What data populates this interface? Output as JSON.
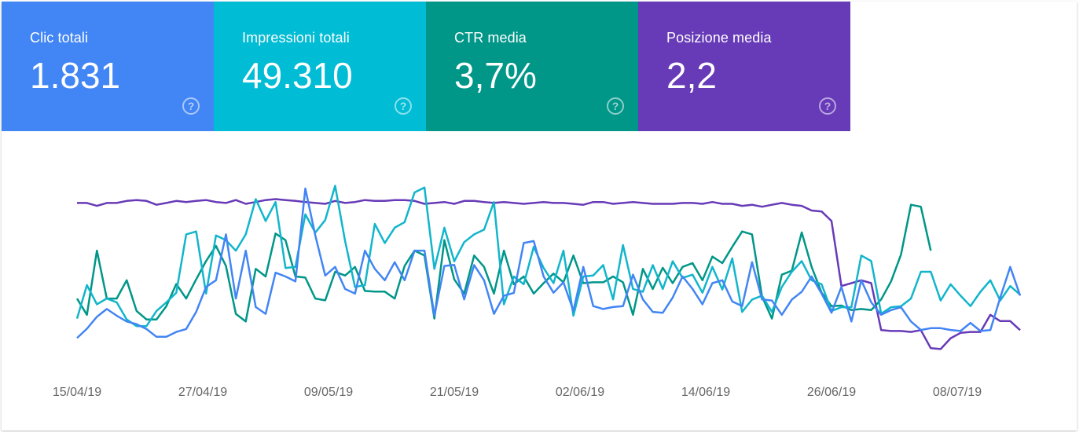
{
  "metrics": [
    {
      "label": "Clic totali",
      "value": "1.831",
      "color": "#4285f4"
    },
    {
      "label": "Impressioni totali",
      "value": "49.310",
      "color": "#00bcd4"
    },
    {
      "label": "CTR media",
      "value": "3,7%",
      "color": "#009688"
    },
    {
      "label": "Posizione media",
      "value": "2,2",
      "color": "#673ab7"
    }
  ],
  "help_icon": "question-circle-icon",
  "chart_data": {
    "type": "line",
    "x_start": "15/04/19",
    "x_labels": [
      "15/04/19",
      "27/04/19",
      "09/05/19",
      "21/05/19",
      "02/06/19",
      "14/06/19",
      "26/06/19",
      "08/07/19"
    ],
    "y_ranges": {
      "clicks": [
        0,
        1
      ],
      "impressions": [
        0,
        1
      ],
      "ctr": [
        0,
        1
      ],
      "position": [
        0,
        1
      ]
    },
    "grid": false,
    "legend": "none",
    "series": [
      {
        "key": "position",
        "color": "#673ab7",
        "values": [
          0.894,
          0.894,
          0.878,
          0.894,
          0.894,
          0.905,
          0.91,
          0.905,
          0.884,
          0.894,
          0.905,
          0.899,
          0.905,
          0.91,
          0.899,
          0.894,
          0.91,
          0.889,
          0.899,
          0.91,
          0.915,
          0.91,
          0.905,
          0.899,
          0.894,
          0.889,
          0.905,
          0.894,
          0.899,
          0.91,
          0.905,
          0.905,
          0.91,
          0.91,
          0.905,
          0.889,
          0.894,
          0.899,
          0.889,
          0.905,
          0.905,
          0.899,
          0.894,
          0.899,
          0.894,
          0.889,
          0.894,
          0.899,
          0.894,
          0.894,
          0.889,
          0.884,
          0.899,
          0.899,
          0.889,
          0.894,
          0.899,
          0.894,
          0.889,
          0.889,
          0.889,
          0.894,
          0.894,
          0.889,
          0.899,
          0.889,
          0.889,
          0.878,
          0.884,
          0.873,
          0.884,
          0.894,
          0.884,
          0.878,
          0.852,
          0.847,
          0.794,
          0.434,
          0.45,
          0.466,
          0.45,
          0.19,
          0.185,
          0.185,
          0.18,
          0.19,
          0.09,
          0.085,
          0.145,
          0.175,
          0.18,
          0.18,
          0.275,
          0.24,
          0.24,
          0.19
        ]
      },
      {
        "key": "ctr",
        "color": "#009688",
        "values": [
          0.365,
          0.275,
          0.63,
          0.365,
          0.365,
          0.466,
          0.296,
          0.249,
          0.249,
          0.323,
          0.445,
          0.365,
          0.471,
          0.572,
          0.656,
          0.545,
          0.28,
          0.238,
          0.529,
          0.487,
          0.725,
          0.688,
          0.487,
          0.481,
          0.365,
          0.355,
          0.513,
          0.492,
          0.54,
          0.407,
          0.403,
          0.403,
          0.365,
          0.545,
          0.63,
          0.603,
          0.254,
          0.688,
          0.471,
          0.392,
          0.603,
          0.54,
          0.392,
          0.63,
          0.444,
          0.487,
          0.392,
          0.45,
          0.503,
          0.455,
          0.603,
          0.45,
          0.455,
          0.455,
          0.487,
          0.455,
          0.275,
          0.529,
          0.418,
          0.535,
          0.45,
          0.54,
          0.561,
          0.466,
          0.597,
          0.561,
          0.651,
          0.736,
          0.72,
          0.376,
          0.254,
          0.497,
          0.519,
          0.731,
          0.54,
          0.397,
          0.323,
          0.326,
          0.301,
          0.307,
          0.301,
          0.36,
          0.46,
          0.608,
          0.884,
          0.873,
          0.63
        ]
      },
      {
        "key": "impressions",
        "color": "#12b5cb",
        "values": [
          0.254,
          0.439,
          0.333,
          0.365,
          0.344,
          0.249,
          0.212,
          0.212,
          0.296,
          0.344,
          0.397,
          0.72,
          0.736,
          0.392,
          0.714,
          0.688,
          0.63,
          0.72,
          0.915,
          0.794,
          0.899,
          0.534,
          0.54,
          0.831,
          0.73,
          0.799,
          0.989,
          0.683,
          0.429,
          0.439,
          0.778,
          0.672,
          0.757,
          0.788,
          0.952,
          0.979,
          0.529,
          0.757,
          0.571,
          0.677,
          0.72,
          0.746,
          0.899,
          0.333,
          0.487,
          0.444,
          0.651,
          0.534,
          0.45,
          0.63,
          0.27,
          0.487,
          0.492,
          0.55,
          0.36,
          0.661,
          0.418,
          0.402,
          0.55,
          0.418,
          0.571,
          0.479,
          0.497,
          0.397,
          0.54,
          0.415,
          0.587,
          0.291,
          0.359,
          0.381,
          0.291,
          0.429,
          0.513,
          0.572,
          0.466,
          0.444,
          0.296,
          0.317,
          0.317,
          0.603,
          0.572,
          0.281,
          0.317,
          0.322,
          0.365,
          0.513,
          0.513,
          0.354,
          0.444,
          0.381,
          0.323,
          0.402,
          0.466,
          0.354,
          0.434,
          0.386
        ]
      },
      {
        "key": "clicks",
        "color": "#4285f4",
        "values": [
          0.146,
          0.198,
          0.264,
          0.307,
          0.27,
          0.238,
          0.223,
          0.196,
          0.153,
          0.153,
          0.18,
          0.196,
          0.291,
          0.429,
          0.466,
          0.72,
          0.365,
          0.63,
          0.318,
          0.28,
          0.508,
          0.487,
          0.46,
          0.974,
          0.714,
          0.492,
          0.54,
          0.418,
          0.392,
          0.63,
          0.529,
          0.466,
          0.566,
          0.466,
          0.63,
          0.63,
          0.27,
          0.545,
          0.551,
          0.36,
          0.55,
          0.466,
          0.28,
          0.381,
          0.396,
          0.672,
          0.683,
          0.487,
          0.397,
          0.455,
          0.297,
          0.54,
          0.323,
          0.307,
          0.318,
          0.323,
          0.497,
          0.36,
          0.291,
          0.286,
          0.37,
          0.487,
          0.418,
          0.333,
          0.45,
          0.466,
          0.349,
          0.323,
          0.566,
          0.36,
          0.354,
          0.275,
          0.359,
          0.402,
          0.487,
          0.392,
          0.286,
          0.429,
          0.238,
          0.466,
          0.344,
          0.275,
          0.301,
          0.317,
          0.238,
          0.191,
          0.201,
          0.201,
          0.191,
          0.185,
          0.23,
          0.185,
          0.19,
          0.37,
          0.54,
          0.381
        ]
      }
    ]
  }
}
